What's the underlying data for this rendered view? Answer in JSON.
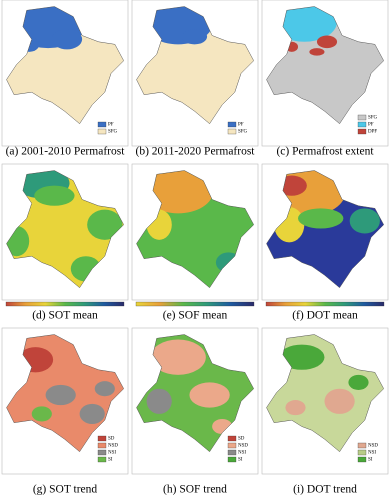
{
  "panels": [
    {
      "caption": "(a) 2001-2010 Permafrost",
      "legend": [
        {
          "name": "PF",
          "color": "#3a6fc4"
        },
        {
          "name": "SFG",
          "color": "#f5e6c0"
        }
      ]
    },
    {
      "caption": "(b) 2011-2020 Permafrost",
      "legend": [
        {
          "name": "PF",
          "color": "#3a6fc4"
        },
        {
          "name": "SFG",
          "color": "#f5e6c0"
        }
      ]
    },
    {
      "caption": "(c) Permafrost extent",
      "legend": [
        {
          "name": "SFG",
          "color": "#c8c8c8"
        },
        {
          "name": "PF",
          "color": "#4cc8e8"
        },
        {
          "name": "DPF",
          "color": "#c0443a"
        }
      ]
    },
    {
      "caption": "(d) SOT mean",
      "colorbar": [
        "#c0443a",
        "#e8a03a",
        "#e8d43a",
        "#5ab84a",
        "#2e9a7a",
        "#1e5aa0",
        "#2a2a6a"
      ]
    },
    {
      "caption": "(e) SOF mean",
      "colorbar": [
        "#e8d43a",
        "#e8a03a",
        "#5ab84a",
        "#2e9a7a",
        "#1e5aa0",
        "#2a2a6a"
      ]
    },
    {
      "caption": "(f) DOT mean",
      "colorbar": [
        "#c0443a",
        "#e8a03a",
        "#e8d43a",
        "#5ab84a",
        "#2e9a7a",
        "#1e5aa0",
        "#2a2a6a"
      ]
    },
    {
      "caption": "(g) SOT trend",
      "legend": [
        {
          "name": "SD",
          "color": "#c0443a"
        },
        {
          "name": "NSD",
          "color": "#e98a6a"
        },
        {
          "name": "NSI",
          "color": "#8a8a8a"
        },
        {
          "name": "SI",
          "color": "#6ab84a"
        }
      ]
    },
    {
      "caption": "(h) SOF trend",
      "legend": [
        {
          "name": "SD",
          "color": "#c0443a"
        },
        {
          "name": "NSD",
          "color": "#eba88a"
        },
        {
          "name": "NSI",
          "color": "#8a8a8a"
        },
        {
          "name": "SI",
          "color": "#4aa83a"
        }
      ]
    },
    {
      "caption": "(i) DOT trend",
      "legend": [
        {
          "name": "NSD",
          "color": "#e0a890"
        },
        {
          "name": "NSI",
          "color": "#b8cc88"
        },
        {
          "name": "SI",
          "color": "#4aa83a"
        }
      ]
    }
  ]
}
